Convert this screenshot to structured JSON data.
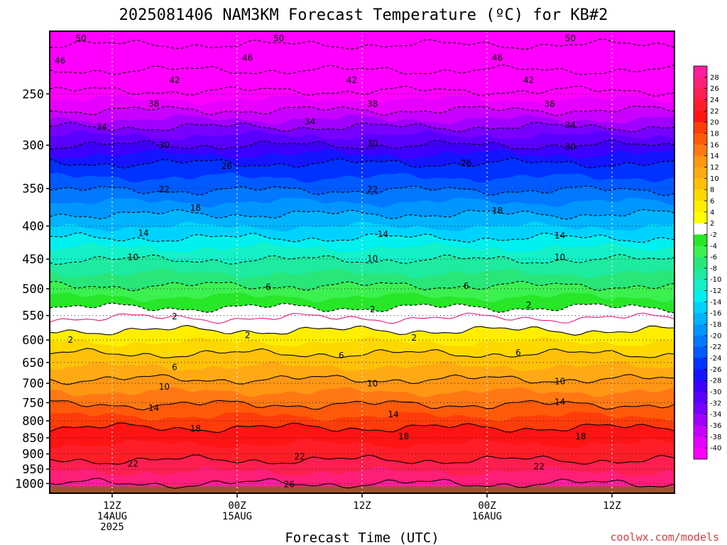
{
  "chart_data": {
    "type": "heatmap",
    "title": "2025081406 NAM3KM Forecast Temperature (ºC) for KB#2",
    "xlabel": "Forecast Time (UTC)",
    "ylabel": "",
    "y_scale": "log-pressure",
    "y_ticks": [
      250,
      300,
      350,
      400,
      450,
      500,
      550,
      600,
      650,
      700,
      750,
      800,
      850,
      900,
      950,
      1000
    ],
    "ylim": [
      1035,
      200
    ],
    "x_ticks": [
      {
        "hour": 6,
        "lines": [
          "12Z",
          "14AUG",
          "2025"
        ]
      },
      {
        "hour": 18,
        "lines": [
          "00Z",
          "15AUG"
        ]
      },
      {
        "hour": 30,
        "lines": [
          "12Z",
          ""
        ]
      },
      {
        "hour": 42,
        "lines": [
          "00Z",
          "16AUG"
        ]
      },
      {
        "hour": 54,
        "lines": [
          "12Z",
          ""
        ]
      }
    ],
    "xlim": [
      0,
      60
    ],
    "colorbar": {
      "labels": [
        28,
        26,
        24,
        22,
        20,
        18,
        16,
        14,
        12,
        10,
        8,
        6,
        4,
        2,
        -2,
        -4,
        -6,
        -8,
        -10,
        -12,
        -14,
        -16,
        -18,
        -20,
        -22,
        -24,
        -26,
        -28,
        -30,
        -32,
        -34,
        -36,
        -38,
        -40
      ],
      "colors": [
        "#ff1e9e",
        "#ff1e78",
        "#ff1e50",
        "#ff1e28",
        "#ff1414",
        "#ff3c0a",
        "#ff5a0a",
        "#ff7814",
        "#ff9614",
        "#ffaa14",
        "#ffc00a",
        "#ffd800",
        "#ffee00",
        "#ffff00",
        "#ffffff",
        "#28e628",
        "#3cf050",
        "#28e678",
        "#1eeba0",
        "#14f0c8",
        "#00f0f0",
        "#00d2ff",
        "#00b4ff",
        "#0096ff",
        "#0078ff",
        "#005aff",
        "#0032ff",
        "#1414ff",
        "#3c00ff",
        "#5a00ff",
        "#7800ff",
        "#a000ff",
        "#c800ff",
        "#e600ff",
        "#ff00ff"
      ]
    },
    "contour_levels": [
      -50,
      -46,
      -42,
      -38,
      -34,
      -30,
      -26,
      -22,
      -18,
      -14,
      -10,
      -6,
      -2,
      0,
      2,
      6,
      10,
      14,
      18,
      22,
      26
    ],
    "temperature_profile": [
      {
        "p": 200,
        "t": -52
      },
      {
        "p": 220,
        "t": -48
      },
      {
        "p": 240,
        "t": -44
      },
      {
        "p": 255,
        "t": -40
      },
      {
        "p": 270,
        "t": -37
      },
      {
        "p": 285,
        "t": -33
      },
      {
        "p": 300,
        "t": -30
      },
      {
        "p": 320,
        "t": -26
      },
      {
        "p": 345,
        "t": -23
      },
      {
        "p": 375,
        "t": -19
      },
      {
        "p": 410,
        "t": -15
      },
      {
        "p": 440,
        "t": -11
      },
      {
        "p": 485,
        "t": -7
      },
      {
        "p": 525,
        "t": -3
      },
      {
        "p": 555,
        "t": 0
      },
      {
        "p": 580,
        "t": 2
      },
      {
        "p": 630,
        "t": 6
      },
      {
        "p": 690,
        "t": 10
      },
      {
        "p": 755,
        "t": 14
      },
      {
        "p": 820,
        "t": 18
      },
      {
        "p": 920,
        "t": 22
      },
      {
        "p": 1000,
        "t": 26
      }
    ],
    "contour_labels": [
      {
        "v": "50",
        "hour": 3,
        "p": 205
      },
      {
        "v": "50",
        "hour": 22,
        "p": 205
      },
      {
        "v": "50",
        "hour": 50,
        "p": 205
      },
      {
        "v": "46",
        "hour": 1,
        "p": 222
      },
      {
        "v": "46",
        "hour": 19,
        "p": 220
      },
      {
        "v": "46",
        "hour": 43,
        "p": 220
      },
      {
        "v": "42",
        "hour": 12,
        "p": 238
      },
      {
        "v": "42",
        "hour": 29,
        "p": 238
      },
      {
        "v": "42",
        "hour": 46,
        "p": 238
      },
      {
        "v": "38",
        "hour": 10,
        "p": 259
      },
      {
        "v": "38",
        "hour": 31,
        "p": 259
      },
      {
        "v": "38",
        "hour": 48,
        "p": 259
      },
      {
        "v": "34",
        "hour": 5,
        "p": 281
      },
      {
        "v": "34",
        "hour": 25,
        "p": 276
      },
      {
        "v": "34",
        "hour": 50,
        "p": 279
      },
      {
        "v": "30",
        "hour": 11,
        "p": 300
      },
      {
        "v": "30",
        "hour": 31,
        "p": 298
      },
      {
        "v": "30",
        "hour": 50,
        "p": 302
      },
      {
        "v": "26",
        "hour": 17,
        "p": 323
      },
      {
        "v": "26",
        "hour": 40,
        "p": 320
      },
      {
        "v": "22",
        "hour": 11,
        "p": 351
      },
      {
        "v": "22",
        "hour": 31,
        "p": 351
      },
      {
        "v": "18",
        "hour": 14,
        "p": 375
      },
      {
        "v": "18",
        "hour": 43,
        "p": 379
      },
      {
        "v": "14",
        "hour": 9,
        "p": 410
      },
      {
        "v": "14",
        "hour": 32,
        "p": 412
      },
      {
        "v": "14",
        "hour": 49,
        "p": 414
      },
      {
        "v": "10",
        "hour": 8,
        "p": 447
      },
      {
        "v": "10",
        "hour": 31,
        "p": 449
      },
      {
        "v": "10",
        "hour": 49,
        "p": 447
      },
      {
        "v": "6",
        "hour": 21,
        "p": 497
      },
      {
        "v": "6",
        "hour": 40,
        "p": 495
      },
      {
        "v": "2",
        "hour": 12,
        "p": 552
      },
      {
        "v": "2",
        "hour": 31,
        "p": 538
      },
      {
        "v": "2",
        "hour": 46,
        "p": 530
      },
      {
        "v": "2",
        "hour": 2,
        "p": 600
      },
      {
        "v": "2",
        "hour": 19,
        "p": 590
      },
      {
        "v": "2",
        "hour": 35,
        "p": 595
      },
      {
        "v": "6",
        "hour": 12,
        "p": 661
      },
      {
        "v": "6",
        "hour": 28,
        "p": 634
      },
      {
        "v": "6",
        "hour": 45,
        "p": 628
      },
      {
        "v": "10",
        "hour": 11,
        "p": 709
      },
      {
        "v": "10",
        "hour": 31,
        "p": 701
      },
      {
        "v": "10",
        "hour": 49,
        "p": 695
      },
      {
        "v": "14",
        "hour": 10,
        "p": 764
      },
      {
        "v": "14",
        "hour": 33,
        "p": 782
      },
      {
        "v": "14",
        "hour": 49,
        "p": 748
      },
      {
        "v": "18",
        "hour": 14,
        "p": 823
      },
      {
        "v": "18",
        "hour": 34,
        "p": 846
      },
      {
        "v": "18",
        "hour": 51,
        "p": 846
      },
      {
        "v": "22",
        "hour": 8,
        "p": 932
      },
      {
        "v": "22",
        "hour": 24,
        "p": 909
      },
      {
        "v": "22",
        "hour": 47,
        "p": 942
      },
      {
        "v": "26",
        "hour": 23,
        "p": 1003
      }
    ],
    "ground_color": "#a0522d",
    "credit": "coolwx.com/models"
  }
}
